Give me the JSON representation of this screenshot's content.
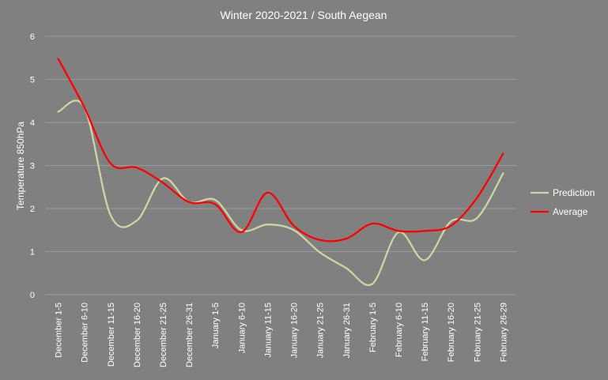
{
  "chart_data": {
    "type": "line",
    "title": "Winter 2020-2021 / South Aegean",
    "xlabel": "",
    "ylabel": "Temperature 850hPa",
    "ylim": [
      0,
      6
    ],
    "yticks": [
      "0",
      "1",
      "2",
      "3",
      "4",
      "5",
      "6"
    ],
    "grid": true,
    "legend_position": "right",
    "categories": [
      "December 1-5",
      "December 6-10",
      "December 11-15",
      "December 16-20",
      "December 21-25",
      "December 26-31",
      "January 1-5",
      "January 6-10",
      "January 11-15",
      "January 16-20",
      "January 21-25",
      "January 26-31",
      "February 1-5",
      "February 6-10",
      "February 11-15",
      "February 16-20",
      "February 21-25",
      "February 26-29"
    ],
    "series": [
      {
        "name": "Prediction",
        "color": "#c8d8a0",
        "values": [
          4.25,
          4.35,
          1.85,
          1.72,
          2.7,
          2.15,
          2.2,
          1.5,
          1.63,
          1.5,
          0.98,
          0.62,
          0.25,
          1.45,
          0.8,
          1.7,
          1.78,
          2.82
        ]
      },
      {
        "name": "Average",
        "color": "#ff0000",
        "values": [
          5.48,
          4.35,
          3.05,
          2.95,
          2.6,
          2.15,
          2.1,
          1.45,
          2.37,
          1.6,
          1.27,
          1.3,
          1.65,
          1.48,
          1.48,
          1.6,
          2.25,
          3.28
        ]
      }
    ]
  }
}
